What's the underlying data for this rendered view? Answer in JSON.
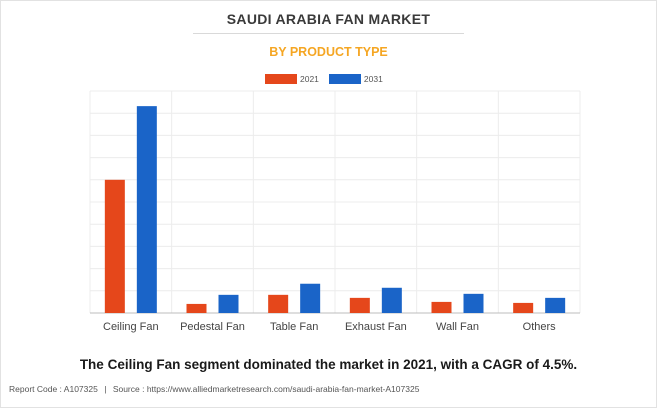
{
  "chart_data": {
    "type": "bar",
    "title": "SAUDI ARABIA FAN MARKET",
    "subtitle": "BY PRODUCT TYPE",
    "categories": [
      "Ceiling Fan",
      "Pedestal Fan",
      "Table Fan",
      "Exhaust Fan",
      "Wall Fan",
      "Others"
    ],
    "series": [
      {
        "name": "2021",
        "color": "#e5471b",
        "values": [
          132,
          9,
          18,
          15,
          11,
          10
        ]
      },
      {
        "name": "2031",
        "color": "#1a64c8",
        "values": [
          205,
          18,
          29,
          25,
          19,
          15
        ]
      }
    ],
    "ylim": [
      0,
      220
    ],
    "grid": true,
    "legend_position": "top-center",
    "xlabel": "",
    "ylabel": ""
  },
  "caption": "The Ceiling Fan segment dominated the market in 2021, with a CAGR of 4.5%.",
  "footer": {
    "report_code": "Report Code : A107325",
    "separator": "|",
    "source": "Source : https://www.alliedmarketresearch.com/saudi-arabia-fan-market-A107325"
  }
}
